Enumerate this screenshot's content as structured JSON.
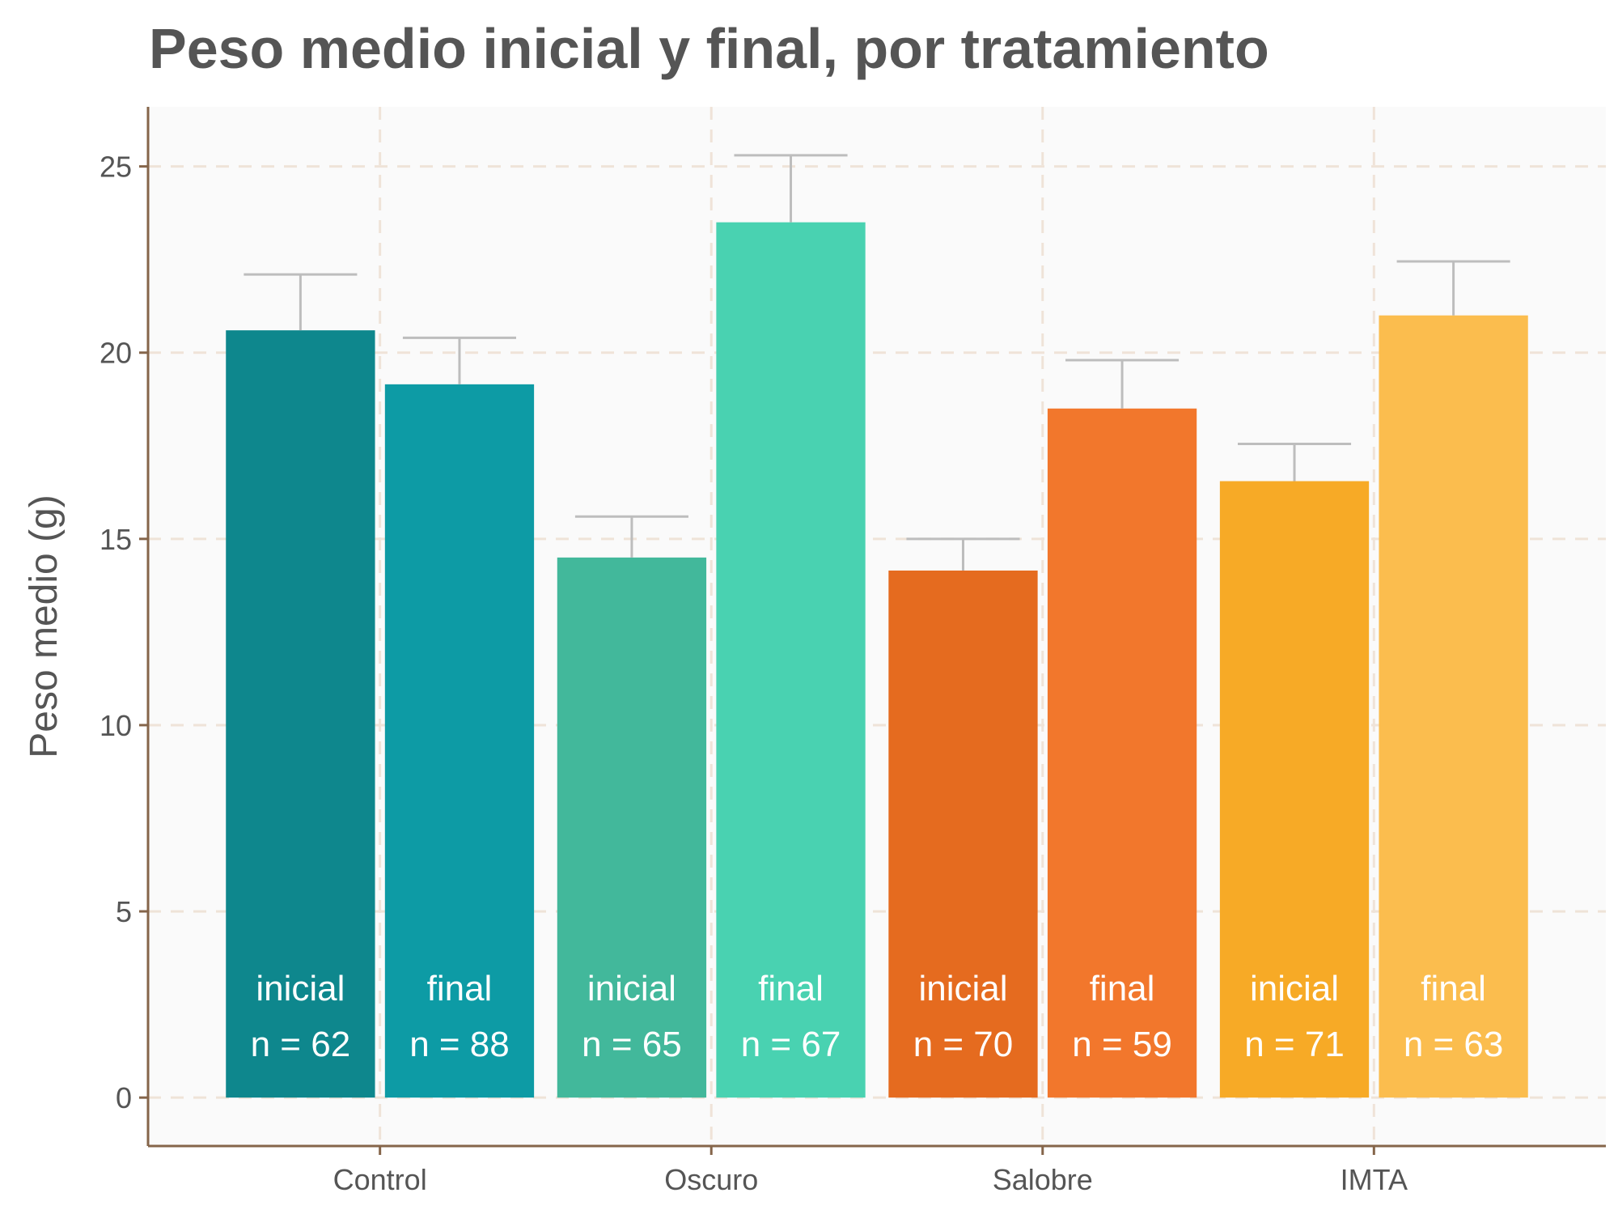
{
  "chart_data": {
    "type": "bar",
    "title": "Peso medio inicial y final, por tratamiento",
    "xlabel": "",
    "ylabel": "Peso medio (g)",
    "categories": [
      "Control",
      "Oscuro",
      "Salobre",
      "IMTA"
    ],
    "ylim": [
      -1.3,
      26.6
    ],
    "yticks": [
      0,
      5,
      10,
      15,
      20,
      25
    ],
    "grid": true,
    "legend": "none",
    "series": [
      {
        "name": "inicial",
        "values": [
          20.6,
          14.5,
          14.15,
          16.55
        ],
        "error": [
          1.5,
          1.1,
          0.85,
          1.0
        ],
        "n_labels": [
          "n = 62",
          "n = 65",
          "n = 70",
          "n = 71"
        ],
        "colors": [
          "#0e878d",
          "#42b89b",
          "#e56b1f",
          "#f7aa26"
        ]
      },
      {
        "name": "final",
        "values": [
          19.15,
          23.5,
          18.5,
          21.0
        ],
        "error": [
          1.25,
          1.8,
          1.3,
          1.45
        ],
        "n_labels": [
          "n = 88",
          "n = 67",
          "n = 59",
          "n = 63"
        ],
        "colors": [
          "#0d9ba5",
          "#49d2b1",
          "#f2772c",
          "#fbbd4e"
        ]
      }
    ],
    "colors": {
      "panel_background": "#fafafa",
      "grid": "#efe3d8",
      "axis": "#85654a",
      "error_bar": "#bdbdbd",
      "text": "#555555",
      "bar_label": "#ffffff"
    }
  }
}
